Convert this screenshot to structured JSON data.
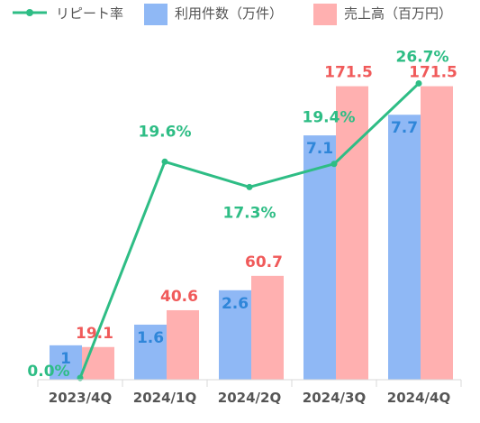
{
  "chart_data": {
    "type": "bar",
    "categories": [
      "2023/4Q",
      "2024/1Q",
      "2024/2Q",
      "2024/3Q",
      "2024/4Q"
    ],
    "series": [
      {
        "name": "利用件数（万件）",
        "kind": "bar",
        "color": "#8fb8f5",
        "label_color": "#2f86d9",
        "values": [
          1,
          1.6,
          2.6,
          7.1,
          7.7
        ],
        "labels": [
          "1",
          "1.6",
          "2.6",
          "7.1",
          "7.7"
        ]
      },
      {
        "name": "売上高（百万円）",
        "kind": "bar",
        "color": "#ffb0b0",
        "label_color": "#f05a5a",
        "values": [
          19.1,
          40.6,
          60.7,
          171.5,
          171.5
        ],
        "labels": [
          "19.1",
          "40.6",
          "60.7",
          "171.5",
          "171.5"
        ]
      },
      {
        "name": "リピート率",
        "kind": "line",
        "color": "#2ebd85",
        "label_color": "#2ebd85",
        "values": [
          0.0,
          19.6,
          17.3,
          19.4,
          26.7
        ],
        "labels": [
          "0.0%",
          "19.6%",
          "17.3%",
          "19.4%",
          "26.7%"
        ]
      }
    ],
    "axes": {
      "count_max": 9.2,
      "sales_max": 185,
      "rate_max": 28.7
    },
    "legend_position": "top",
    "grid": false
  }
}
